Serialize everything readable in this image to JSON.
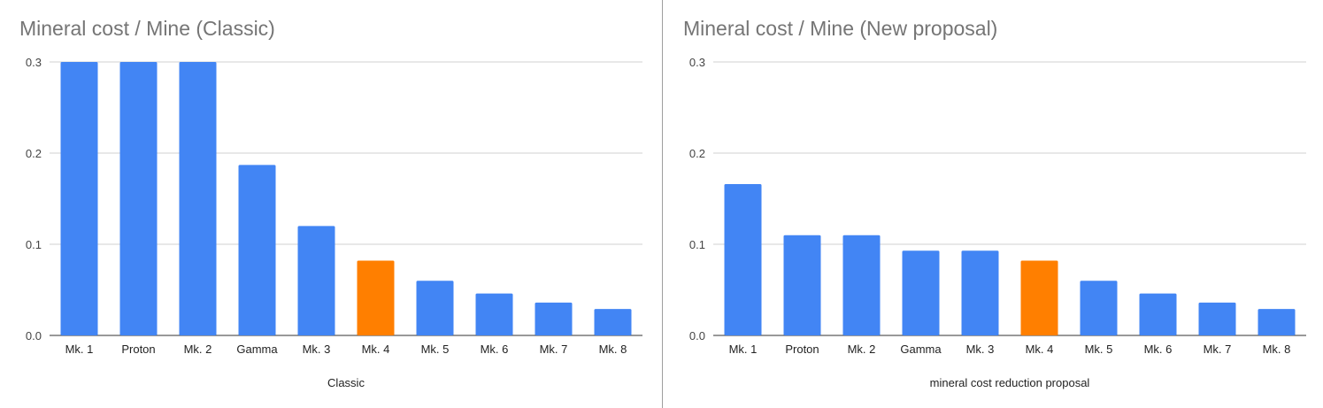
{
  "chart_data": [
    {
      "type": "bar",
      "title": "Mineral cost / Mine (Classic)",
      "xlabel": "Classic",
      "ylabel": "",
      "ylim": [
        0,
        0.3
      ],
      "yticks": [
        "0.0",
        "0.1",
        "0.2",
        "0.3"
      ],
      "grid": true,
      "legend": "none",
      "categories": [
        "Mk. 1",
        "Proton",
        "Mk. 2",
        "Gamma",
        "Mk. 3",
        "Mk. 4",
        "Mk. 5",
        "Mk. 6",
        "Mk. 7",
        "Mk. 8"
      ],
      "values": [
        0.3,
        0.3,
        0.3,
        0.187,
        0.12,
        0.082,
        0.06,
        0.046,
        0.036,
        0.029
      ],
      "colors": [
        "#4285f4",
        "#4285f4",
        "#4285f4",
        "#4285f4",
        "#4285f4",
        "#ff7f00",
        "#4285f4",
        "#4285f4",
        "#4285f4",
        "#4285f4"
      ]
    },
    {
      "type": "bar",
      "title": "Mineral cost / Mine (New proposal)",
      "xlabel": "mineral cost reduction proposal",
      "ylabel": "",
      "ylim": [
        0,
        0.3
      ],
      "yticks": [
        "0.0",
        "0.1",
        "0.2",
        "0.3"
      ],
      "grid": true,
      "legend": "none",
      "categories": [
        "Mk. 1",
        "Proton",
        "Mk. 2",
        "Gamma",
        "Mk. 3",
        "Mk. 4",
        "Mk. 5",
        "Mk. 6",
        "Mk. 7",
        "Mk. 8"
      ],
      "values": [
        0.166,
        0.11,
        0.11,
        0.093,
        0.093,
        0.082,
        0.06,
        0.046,
        0.036,
        0.029
      ],
      "colors": [
        "#4285f4",
        "#4285f4",
        "#4285f4",
        "#4285f4",
        "#4285f4",
        "#ff7f00",
        "#4285f4",
        "#4285f4",
        "#4285f4",
        "#4285f4"
      ]
    }
  ]
}
